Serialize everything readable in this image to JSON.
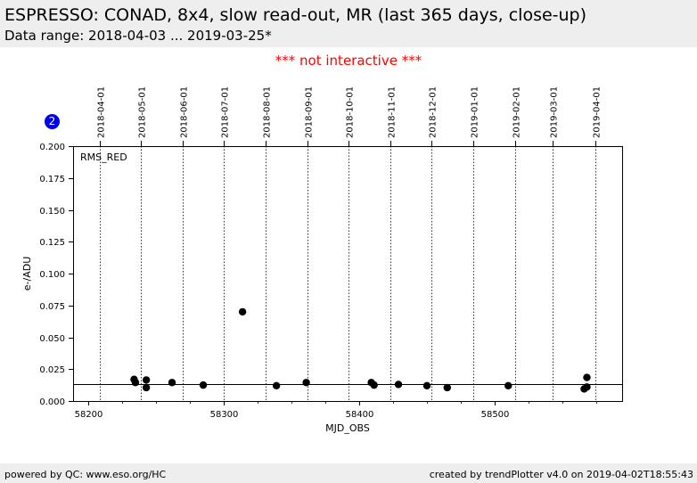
{
  "header": {
    "title": "ESPRESSO: CONAD, 8x4, slow read-out, MR (last 365 days, close-up)",
    "subtitle": "Data range: 2018-04-03 ... 2019-03-25*"
  },
  "notice": "*** not interactive ***",
  "badge": "2",
  "footer": {
    "left": "powered by QC: www.eso.org/HC",
    "right": "created by trendPlotter v4.0 on 2019-04-02T18:55:43"
  },
  "colors": {
    "points": "#000000",
    "notice": "#ff0000",
    "badge": "#0000ee",
    "header_bg": "#eeeeee"
  },
  "chart_data": {
    "type": "scatter",
    "xlabel": "MJD_OBS",
    "ylabel": "e-/ADU",
    "panel_label": "RMS_RED",
    "xlim": [
      58189,
      58594
    ],
    "ylim": [
      0.0,
      0.2
    ],
    "xticks": [
      58200,
      58300,
      58400,
      58500
    ],
    "xtick_labels": [
      "58200",
      "58300",
      "58400",
      "58500"
    ],
    "yticks": [
      0.0,
      0.025,
      0.05,
      0.075,
      0.1,
      0.125,
      0.15,
      0.175,
      0.2
    ],
    "ytick_labels": [
      "0.000",
      "0.025",
      "0.050",
      "0.075",
      "0.100",
      "0.125",
      "0.150",
      "0.175",
      "0.200"
    ],
    "reference_line": 0.013,
    "month_markers": [
      {
        "label": "2018-04-01",
        "mjd": 58209
      },
      {
        "label": "2018-05-01",
        "mjd": 58239
      },
      {
        "label": "2018-06-01",
        "mjd": 58270
      },
      {
        "label": "2018-07-01",
        "mjd": 58300
      },
      {
        "label": "2018-08-01",
        "mjd": 58331
      },
      {
        "label": "2018-09-01",
        "mjd": 58362
      },
      {
        "label": "2018-10-01",
        "mjd": 58392
      },
      {
        "label": "2018-11-01",
        "mjd": 58423
      },
      {
        "label": "2018-12-01",
        "mjd": 58453
      },
      {
        "label": "2019-01-01",
        "mjd": 58484
      },
      {
        "label": "2019-02-01",
        "mjd": 58515
      },
      {
        "label": "2019-03-01",
        "mjd": 58543
      },
      {
        "label": "2019-04-01",
        "mjd": 58574
      }
    ],
    "points": [
      {
        "x": 58234,
        "y": 0.017
      },
      {
        "x": 58235,
        "y": 0.0145
      },
      {
        "x": 58243,
        "y": 0.0165
      },
      {
        "x": 58243,
        "y": 0.0105
      },
      {
        "x": 58262,
        "y": 0.0145
      },
      {
        "x": 58285,
        "y": 0.0125
      },
      {
        "x": 58314,
        "y": 0.07
      },
      {
        "x": 58339,
        "y": 0.012
      },
      {
        "x": 58361,
        "y": 0.0145
      },
      {
        "x": 58409,
        "y": 0.0145
      },
      {
        "x": 58411,
        "y": 0.0125
      },
      {
        "x": 58429,
        "y": 0.013
      },
      {
        "x": 58450,
        "y": 0.012
      },
      {
        "x": 58465,
        "y": 0.0105
      },
      {
        "x": 58510,
        "y": 0.012
      },
      {
        "x": 58566,
        "y": 0.0095
      },
      {
        "x": 58568,
        "y": 0.011
      },
      {
        "x": 58568,
        "y": 0.0185
      }
    ]
  }
}
